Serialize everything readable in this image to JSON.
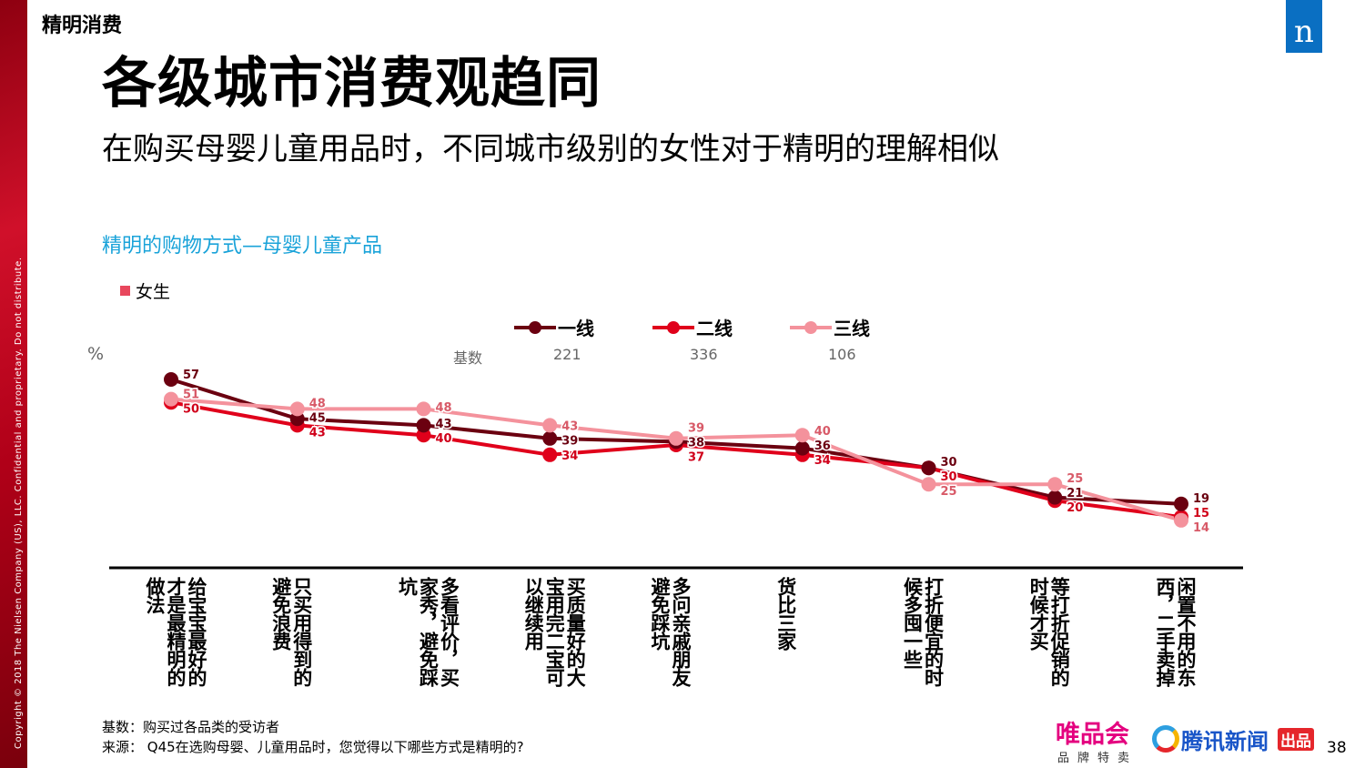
{
  "copyright": "Copyright © 2018 The Nielsen Company (US), LLC. Confidential and proprietary. Do not distribute.",
  "section": "精明消费",
  "logo": "n",
  "title": "各级城市消费观趋同",
  "subtitle": "在购买母婴儿童用品时，不同城市级别的女性对于精明的理解相似",
  "chart_data": {
    "type": "line",
    "title": "精明的购物方式—母婴儿童产品",
    "filter_legend": "女生",
    "ylabel": "%",
    "base_label": "基数",
    "categories": [
      "给宝宝最好的才是最精明的做法",
      "只买用得到的避免浪费",
      "多看评价，买家秀，避免踩坑",
      "买质量好的大宝用完二宝可以继续用",
      "多问亲戚朋友避免踩坑",
      "货比三家",
      "打折便宜的时候多囤一些",
      "等打折促销的时候才买",
      "闲置不用的东西，二手卖掉"
    ],
    "series": [
      {
        "name": "一线",
        "base": "221",
        "color": "#6b0010",
        "values": [
          57,
          45,
          43,
          39,
          38,
          36,
          30,
          21,
          19
        ]
      },
      {
        "name": "二线",
        "base": "336",
        "color": "#e0001b",
        "values": [
          50,
          43,
          40,
          34,
          37,
          34,
          30,
          20,
          15
        ]
      },
      {
        "name": "三线",
        "base": "106",
        "color": "#f4929c",
        "values": [
          51,
          48,
          48,
          43,
          39,
          40,
          25,
          25,
          14
        ]
      }
    ],
    "grid": false,
    "legend_position": "top"
  },
  "footer": {
    "base": "基数：购买过各品类的受访者",
    "source": "来源：   Q45在选购母婴、儿童用品时，您觉得以下哪些方式是精明的?"
  },
  "brands": {
    "vip": "唯品会",
    "vip_sub": "品牌特卖",
    "tencent": "腾讯新闻",
    "chupin": "出品"
  },
  "page": "38"
}
